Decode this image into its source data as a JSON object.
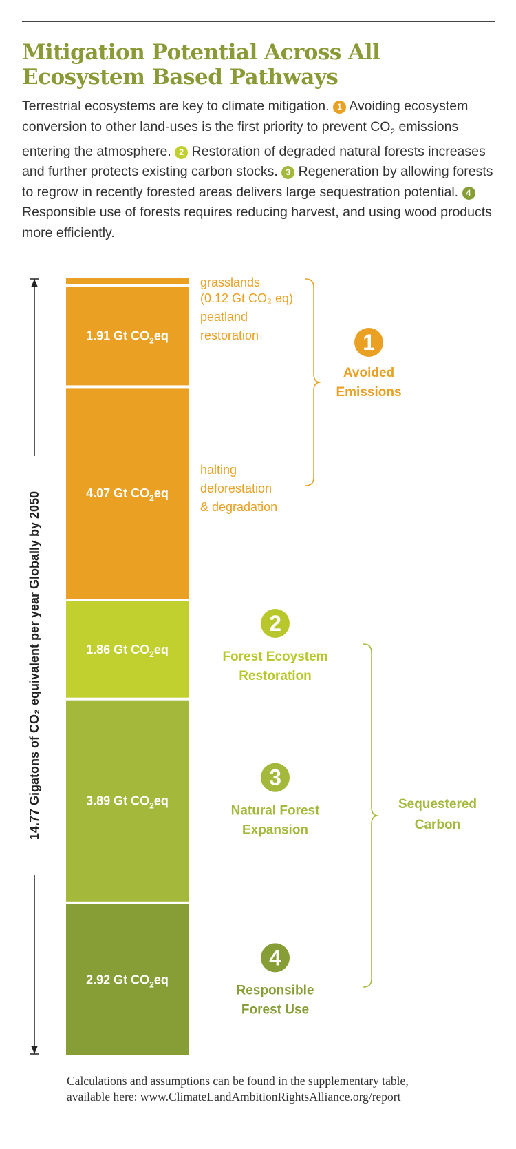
{
  "title_line1": "Mitigation Potential Across All",
  "title_line2": "Ecosystem Based Pathways",
  "intro": {
    "t1": "Terrestrial ecosystems are key to climate mitigation. ",
    "n1": "1",
    "t2": " Avoiding ecosystem conversion to other land-uses is the first priority to prevent CO",
    "sub": "2",
    "t3": " emissions entering the atmosphere. ",
    "n2": "2",
    "t4": " Restoration of degraded natural forests increases and further protects existing carbon stocks. ",
    "n3": "3",
    "t5": " Regeneration by allowing forests to regrow in recently forested areas delivers large sequestration potential. ",
    "n4": "4",
    "t6": " Responsible use of forests requires reducing harvest, and using wood products more efficiently."
  },
  "colors": {
    "orange": "#e9a023",
    "lime": "#c1cf2f",
    "green": "#a4b83b",
    "olive": "#879e37",
    "title": "#8b9a36",
    "text": "#333333"
  },
  "chart_data": {
    "type": "bar",
    "stacked": true,
    "orientation": "vertical",
    "unit_prefix": "Gt CO",
    "unit_sub": "2",
    "unit_suffix": "eq",
    "axis_title": "14.77 Gigatons of CO₂ equivalent per year Globally by 2050",
    "total": 14.77,
    "segments": [
      {
        "id": "grasslands",
        "value": 0.12,
        "bar_label": "",
        "label": [
          "grasslands",
          "(0.12 Gt CO₂ eq)"
        ],
        "color": "#e9a023",
        "group": 1
      },
      {
        "id": "peatland",
        "value": 1.91,
        "bar_label": "1.91",
        "label": [
          "peatland",
          "restoration"
        ],
        "color": "#e9a023",
        "group": 1
      },
      {
        "id": "deforestation",
        "value": 4.07,
        "bar_label": "4.07",
        "label": [
          "halting",
          "deforestation",
          "& degradation"
        ],
        "color": "#e9a023",
        "group": 1
      },
      {
        "id": "restoration",
        "value": 1.86,
        "bar_label": "1.86",
        "label": [],
        "color": "#c1cf2f",
        "group": 2
      },
      {
        "id": "expansion",
        "value": 3.89,
        "bar_label": "3.89",
        "label": [],
        "color": "#a4b83b",
        "group": 3
      },
      {
        "id": "forest-use",
        "value": 2.92,
        "bar_label": "2.92",
        "label": [],
        "color": "#879e37",
        "group": 4
      }
    ],
    "groups": [
      {
        "num": "1",
        "label": [
          "Avoided",
          "Emissions"
        ],
        "color": "#e9a023"
      },
      {
        "num": "2",
        "label": [
          "Forest Ecoystem",
          "Restoration"
        ],
        "color": "#b8c82c"
      },
      {
        "num": "3",
        "label": [
          "Natural Forest",
          "Expansion"
        ],
        "color": "#a4b83b"
      },
      {
        "num": "4",
        "label": [
          "Responsible",
          "Forest Use"
        ],
        "color": "#879e37"
      }
    ],
    "bracket_label": [
      "Sequestered",
      "Carbon"
    ],
    "bracket_color": "#a4b83b"
  },
  "footnote": {
    "line1": "Calculations and assumptions can be found in the supplementary table,",
    "line2": "available here: www.ClimateLandAmbitionRightsAlliance.org/report"
  }
}
